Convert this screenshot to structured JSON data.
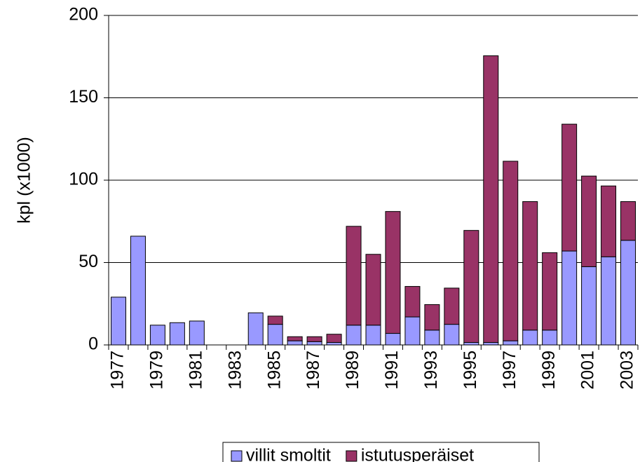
{
  "chart_data": {
    "type": "stacked_bar",
    "y_label": "kpl (x1000)",
    "categories": [
      "1977",
      null,
      "1979",
      null,
      "1981",
      null,
      "1983",
      null,
      "1985",
      null,
      "1987",
      null,
      "1989",
      null,
      "1991",
      null,
      "1993",
      null,
      "1995",
      null,
      "1997",
      null,
      "1999",
      null,
      "2001",
      null,
      "2003"
    ],
    "series": [
      {
        "name": "villit smoltit",
        "color": "#9999ff",
        "values": [
          29,
          66,
          12,
          13.5,
          14.5,
          null,
          null,
          19.5,
          12.5,
          2.5,
          2,
          1.5,
          12,
          12,
          7,
          17,
          9,
          12.5,
          1.5,
          1.5,
          2.5,
          9,
          9,
          57,
          47.5,
          53.5,
          63.5
        ]
      },
      {
        "name": "istutusperäiset",
        "color": "#993366",
        "values": [
          null,
          null,
          null,
          null,
          null,
          null,
          null,
          null,
          5,
          2.5,
          3,
          5,
          60,
          43,
          74,
          18.5,
          15.5,
          22,
          68,
          174,
          109,
          78,
          47,
          77,
          55,
          43,
          23.5
        ]
      }
    ],
    "ylim": [
      0,
      200
    ],
    "yticks": [
      0,
      50,
      100,
      150,
      200
    ],
    "grid": true,
    "legend": "bottom"
  }
}
